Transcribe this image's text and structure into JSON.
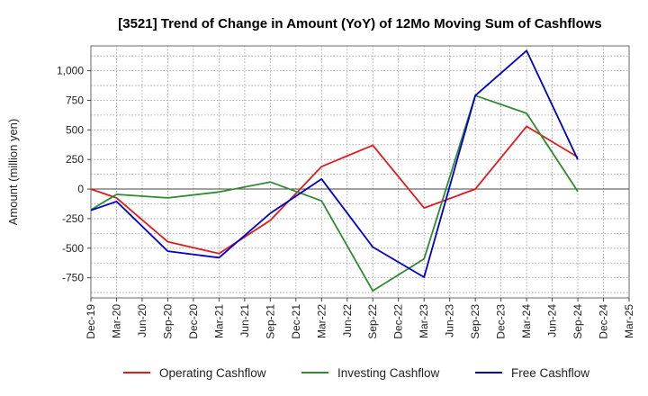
{
  "chart_data": {
    "type": "line",
    "title": "[3521]  Trend of Change in Amount (YoY) of 12Mo Moving Sum of Cashflows",
    "xlabel": "",
    "ylabel": "Amount (million yen)",
    "ylim": [
      -920,
      1210
    ],
    "yticks": [
      -750,
      -500,
      -250,
      0,
      250,
      500,
      750,
      1000
    ],
    "ytick_labels": [
      "-750",
      "-500",
      "-250",
      "0",
      "250",
      "500",
      "750",
      "1,000"
    ],
    "categories": [
      "Dec-19",
      "Mar-20",
      "Jun-20",
      "Sep-20",
      "Dec-20",
      "Mar-21",
      "Jun-21",
      "Sep-21",
      "Dec-21",
      "Mar-22",
      "Jun-22",
      "Sep-22",
      "Dec-22",
      "Mar-23",
      "Jun-23",
      "Sep-23",
      "Dec-23",
      "Mar-24",
      "Jun-24",
      "Sep-24",
      "Dec-24",
      "Mar-25"
    ],
    "grid": true,
    "legend_position": "bottom",
    "series": [
      {
        "name": "Operating Cashflow",
        "color": "#e31a1c",
        "values": [
          0,
          -75,
          null,
          -445,
          null,
          -545,
          null,
          -265,
          null,
          190,
          null,
          370,
          null,
          -160,
          null,
          0,
          null,
          530,
          null,
          270,
          null,
          null
        ]
      },
      {
        "name": "Investing Cashflow",
        "color": "#2e8b2e",
        "values": [
          -175,
          -45,
          null,
          -75,
          null,
          -25,
          null,
          60,
          null,
          -100,
          null,
          -860,
          null,
          -590,
          null,
          790,
          null,
          640,
          null,
          -20,
          null,
          null
        ]
      },
      {
        "name": "Free Cashflow",
        "color": "#0000cc",
        "values": [
          -180,
          -105,
          null,
          -525,
          null,
          -580,
          null,
          -205,
          null,
          85,
          null,
          -490,
          null,
          -745,
          null,
          790,
          null,
          1170,
          null,
          250,
          null,
          null
        ]
      }
    ]
  }
}
